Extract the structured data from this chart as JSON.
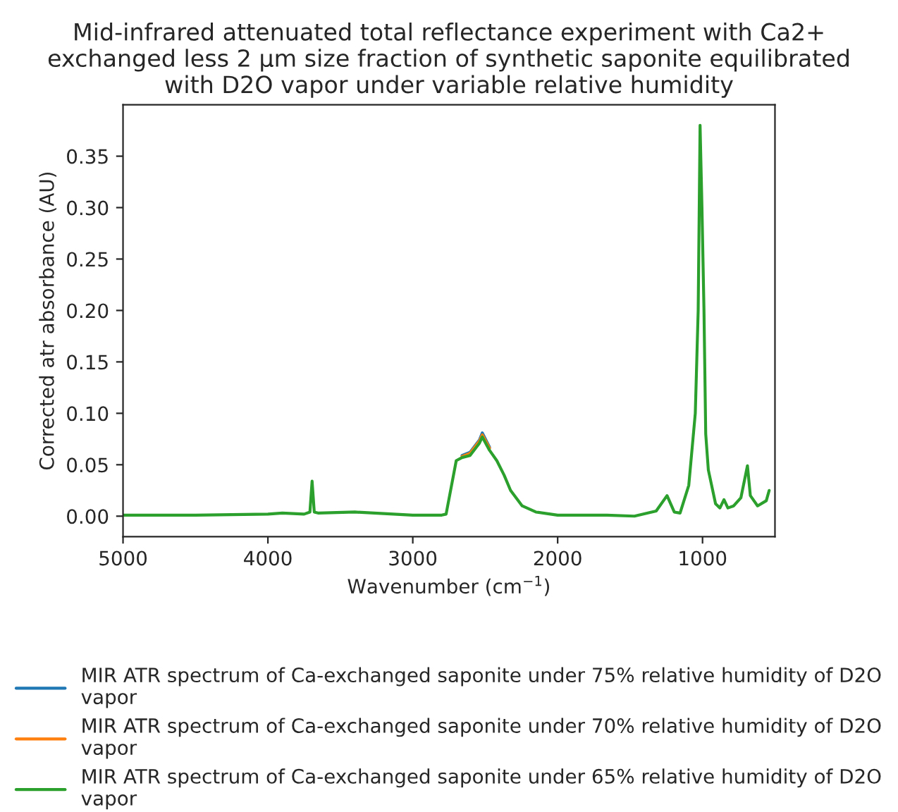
{
  "chart_data": {
    "type": "line",
    "title": "Mid-infrared attenuated total reflectance experiment with Ca2+ exchanged less 2 µm size fraction of synthetic saponite equilibrated with D2O vapor under variable relative humidity",
    "xlabel": "Wavenumber (cm$^{−1}$)",
    "ylabel": "Corrected atr absorbance (AU)",
    "x": [
      5000,
      4500,
      4000,
      3900,
      3750,
      3710,
      3695,
      3680,
      3650,
      3400,
      3000,
      2800,
      2770,
      2700,
      2660,
      2605,
      2540,
      2520,
      2470,
      2420,
      2370,
      2325,
      2245,
      2150,
      2000,
      1660,
      1470,
      1320,
      1245,
      1195,
      1155,
      1095,
      1050,
      1030,
      1017,
      1004,
      990,
      978,
      960,
      910,
      880,
      852,
      825,
      785,
      735,
      690,
      670,
      620,
      560,
      540
    ],
    "series": [
      {
        "name": "MIR ATR spectrum of Ca-exchanged saponite under 75% relative humidity of D2O vapor",
        "color": "#1f77b4",
        "values": [
          null,
          null,
          null,
          null,
          null,
          null,
          null,
          null,
          null,
          null,
          null,
          null,
          null,
          null,
          0.059,
          0.062,
          0.074,
          0.081,
          0.067,
          null,
          null,
          null,
          null,
          null,
          null,
          null,
          null,
          null,
          null,
          null,
          null,
          null,
          null,
          null,
          null,
          null,
          null,
          null,
          null,
          null,
          null,
          null,
          null,
          null,
          null,
          null,
          null,
          null,
          null,
          null
        ]
      },
      {
        "name": "MIR ATR spectrum of Ca-exchanged saponite under 70% relative humidity of D2O vapor",
        "color": "#ff7f0e",
        "values": [
          null,
          null,
          null,
          null,
          null,
          null,
          null,
          null,
          null,
          null,
          null,
          null,
          null,
          null,
          0.058,
          0.061,
          0.073,
          0.079,
          0.066,
          null,
          null,
          null,
          null,
          null,
          null,
          null,
          null,
          null,
          null,
          null,
          null,
          null,
          null,
          null,
          null,
          null,
          null,
          null,
          null,
          null,
          null,
          null,
          null,
          null,
          null,
          null,
          null,
          null,
          null,
          null
        ]
      },
      {
        "name": "MIR ATR spectrum of Ca-exchanged saponite under 65% relative humidity of D2O vapor",
        "color": "#2ca02c",
        "values": [
          0.001,
          0.001,
          0.002,
          0.003,
          0.002,
          0.004,
          0.034,
          0.004,
          0.003,
          0.004,
          0.001,
          0.001,
          0.002,
          0.054,
          0.057,
          0.059,
          0.071,
          0.077,
          0.064,
          0.054,
          0.04,
          0.025,
          0.01,
          0.004,
          0.001,
          0.001,
          0.0,
          0.005,
          0.02,
          0.004,
          0.003,
          0.03,
          0.1,
          0.2,
          0.38,
          0.3,
          0.2,
          0.08,
          0.045,
          0.012,
          0.008,
          0.016,
          0.008,
          0.01,
          0.018,
          0.049,
          0.02,
          0.01,
          0.015,
          0.025
        ]
      }
    ],
    "xlim": [
      5000,
      500
    ],
    "xticks": [
      5000,
      4000,
      3000,
      2000,
      1000
    ],
    "ylim": [
      -0.02,
      0.4
    ],
    "yticks": [
      {
        "value": 0,
        "label": "0.00"
      },
      {
        "value": 0.05,
        "label": "0.05"
      },
      {
        "value": 0.1,
        "label": "0.10"
      },
      {
        "value": 0.15,
        "label": "0.15"
      },
      {
        "value": 0.2,
        "label": "0.20"
      },
      {
        "value": 0.25,
        "label": "0.25"
      },
      {
        "value": 0.3,
        "label": "0.30"
      },
      {
        "value": 0.35,
        "label": "0.35"
      }
    ],
    "grid": false,
    "legend": "bottom",
    "marker": "none",
    "line_style": "solid"
  }
}
